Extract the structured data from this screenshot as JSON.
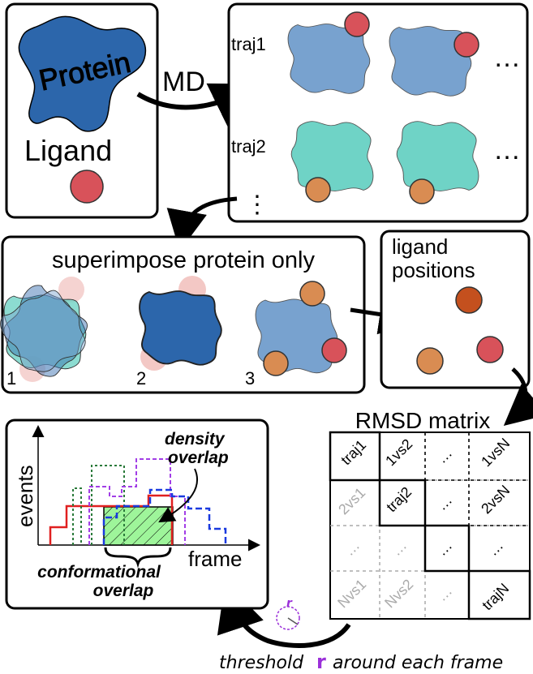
{
  "panels": {
    "system": {
      "protein_label": "Protein",
      "ligand_label": "Ligand"
    },
    "md": {
      "arrow_label": "MD",
      "traj1_label": "traj1",
      "traj2_label": "traj2",
      "more_rows": "⋮",
      "more_cols": "…"
    },
    "superimpose": {
      "title": "superimpose protein only",
      "step1": "1",
      "step2": "2",
      "step3": "3"
    },
    "ligand_positions": {
      "title_line1": "ligand",
      "title_line2": "positions"
    },
    "rmsd": {
      "title": "RMSD matrix",
      "cells": [
        [
          "traj1",
          "1vs2",
          "…",
          "1vsN"
        ],
        [
          "2vs1",
          "traj2",
          "…",
          "2vsN"
        ],
        [
          "…",
          "…",
          "…",
          "…"
        ],
        [
          "Nvs1",
          "Nvs2",
          "…",
          "trajN"
        ]
      ]
    },
    "overlap": {
      "ylabel": "events",
      "xlabel": "frame",
      "density_line1": "density",
      "density_line2": "overlap",
      "conf_line1": "conformational",
      "conf_line2": "overlap"
    },
    "threshold": {
      "text_before": "threshold",
      "symbol": "r",
      "text_after": "around each frame",
      "icon_label": "r"
    }
  },
  "colors": {
    "protein_dark": "#2c66ab",
    "protein_light": "#78a2cf",
    "protein_teal": "#6fd3c6",
    "ligand_red": "#d8525a",
    "ligand_orange": "#d98c52",
    "ligand_darkorange": "#c4501e",
    "overlap_green": "#9ef59a",
    "threshold_purple": "#9b30d9",
    "hist_red": "#e02020",
    "hist_blue": "#1a3adf",
    "hist_darkgreen": "#2a7a3a",
    "hist_purple": "#a23ee6"
  }
}
